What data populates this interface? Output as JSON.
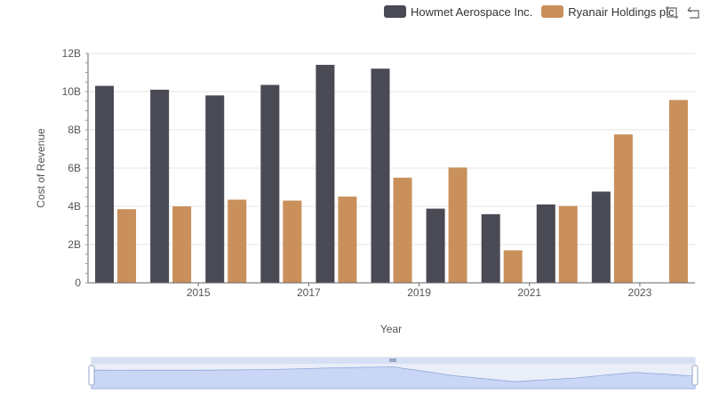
{
  "chart_data": {
    "type": "bar",
    "xlabel": "Year",
    "ylabel": "Cost of Revenue",
    "categories": [
      "2014",
      "2015",
      "2016",
      "2017",
      "2018",
      "2019",
      "2020",
      "2021",
      "2022",
      "2023",
      "2024"
    ],
    "x_tick_labels": [
      "2015",
      "2017",
      "2019",
      "2021",
      "2023"
    ],
    "y_ticks": [
      0,
      2000000000,
      4000000000,
      6000000000,
      8000000000,
      10000000000,
      12000000000
    ],
    "y_tick_labels": [
      "0",
      "2B",
      "4B",
      "6B",
      "8B",
      "10B",
      "12B"
    ],
    "ylim": [
      0,
      12000000000
    ],
    "grid": true,
    "legend_position": "top-right",
    "series": [
      {
        "name": "Howmet Aerospace Inc.",
        "color": "#4a4a55",
        "values": [
          10300000000,
          10100000000,
          9800000000,
          10350000000,
          11400000000,
          11200000000,
          3880000000,
          3590000000,
          4100000000,
          4770000000,
          null
        ]
      },
      {
        "name": "Ryanair Holdings plc",
        "color": "#c9905c",
        "values": [
          3850000000,
          4000000000,
          4350000000,
          4300000000,
          4510000000,
          5500000000,
          6030000000,
          1700000000,
          4020000000,
          7760000000,
          9560000000
        ]
      }
    ]
  },
  "toolbox": {
    "zoom_icon": "zoom-icon",
    "restore_icon": "restore-icon"
  }
}
